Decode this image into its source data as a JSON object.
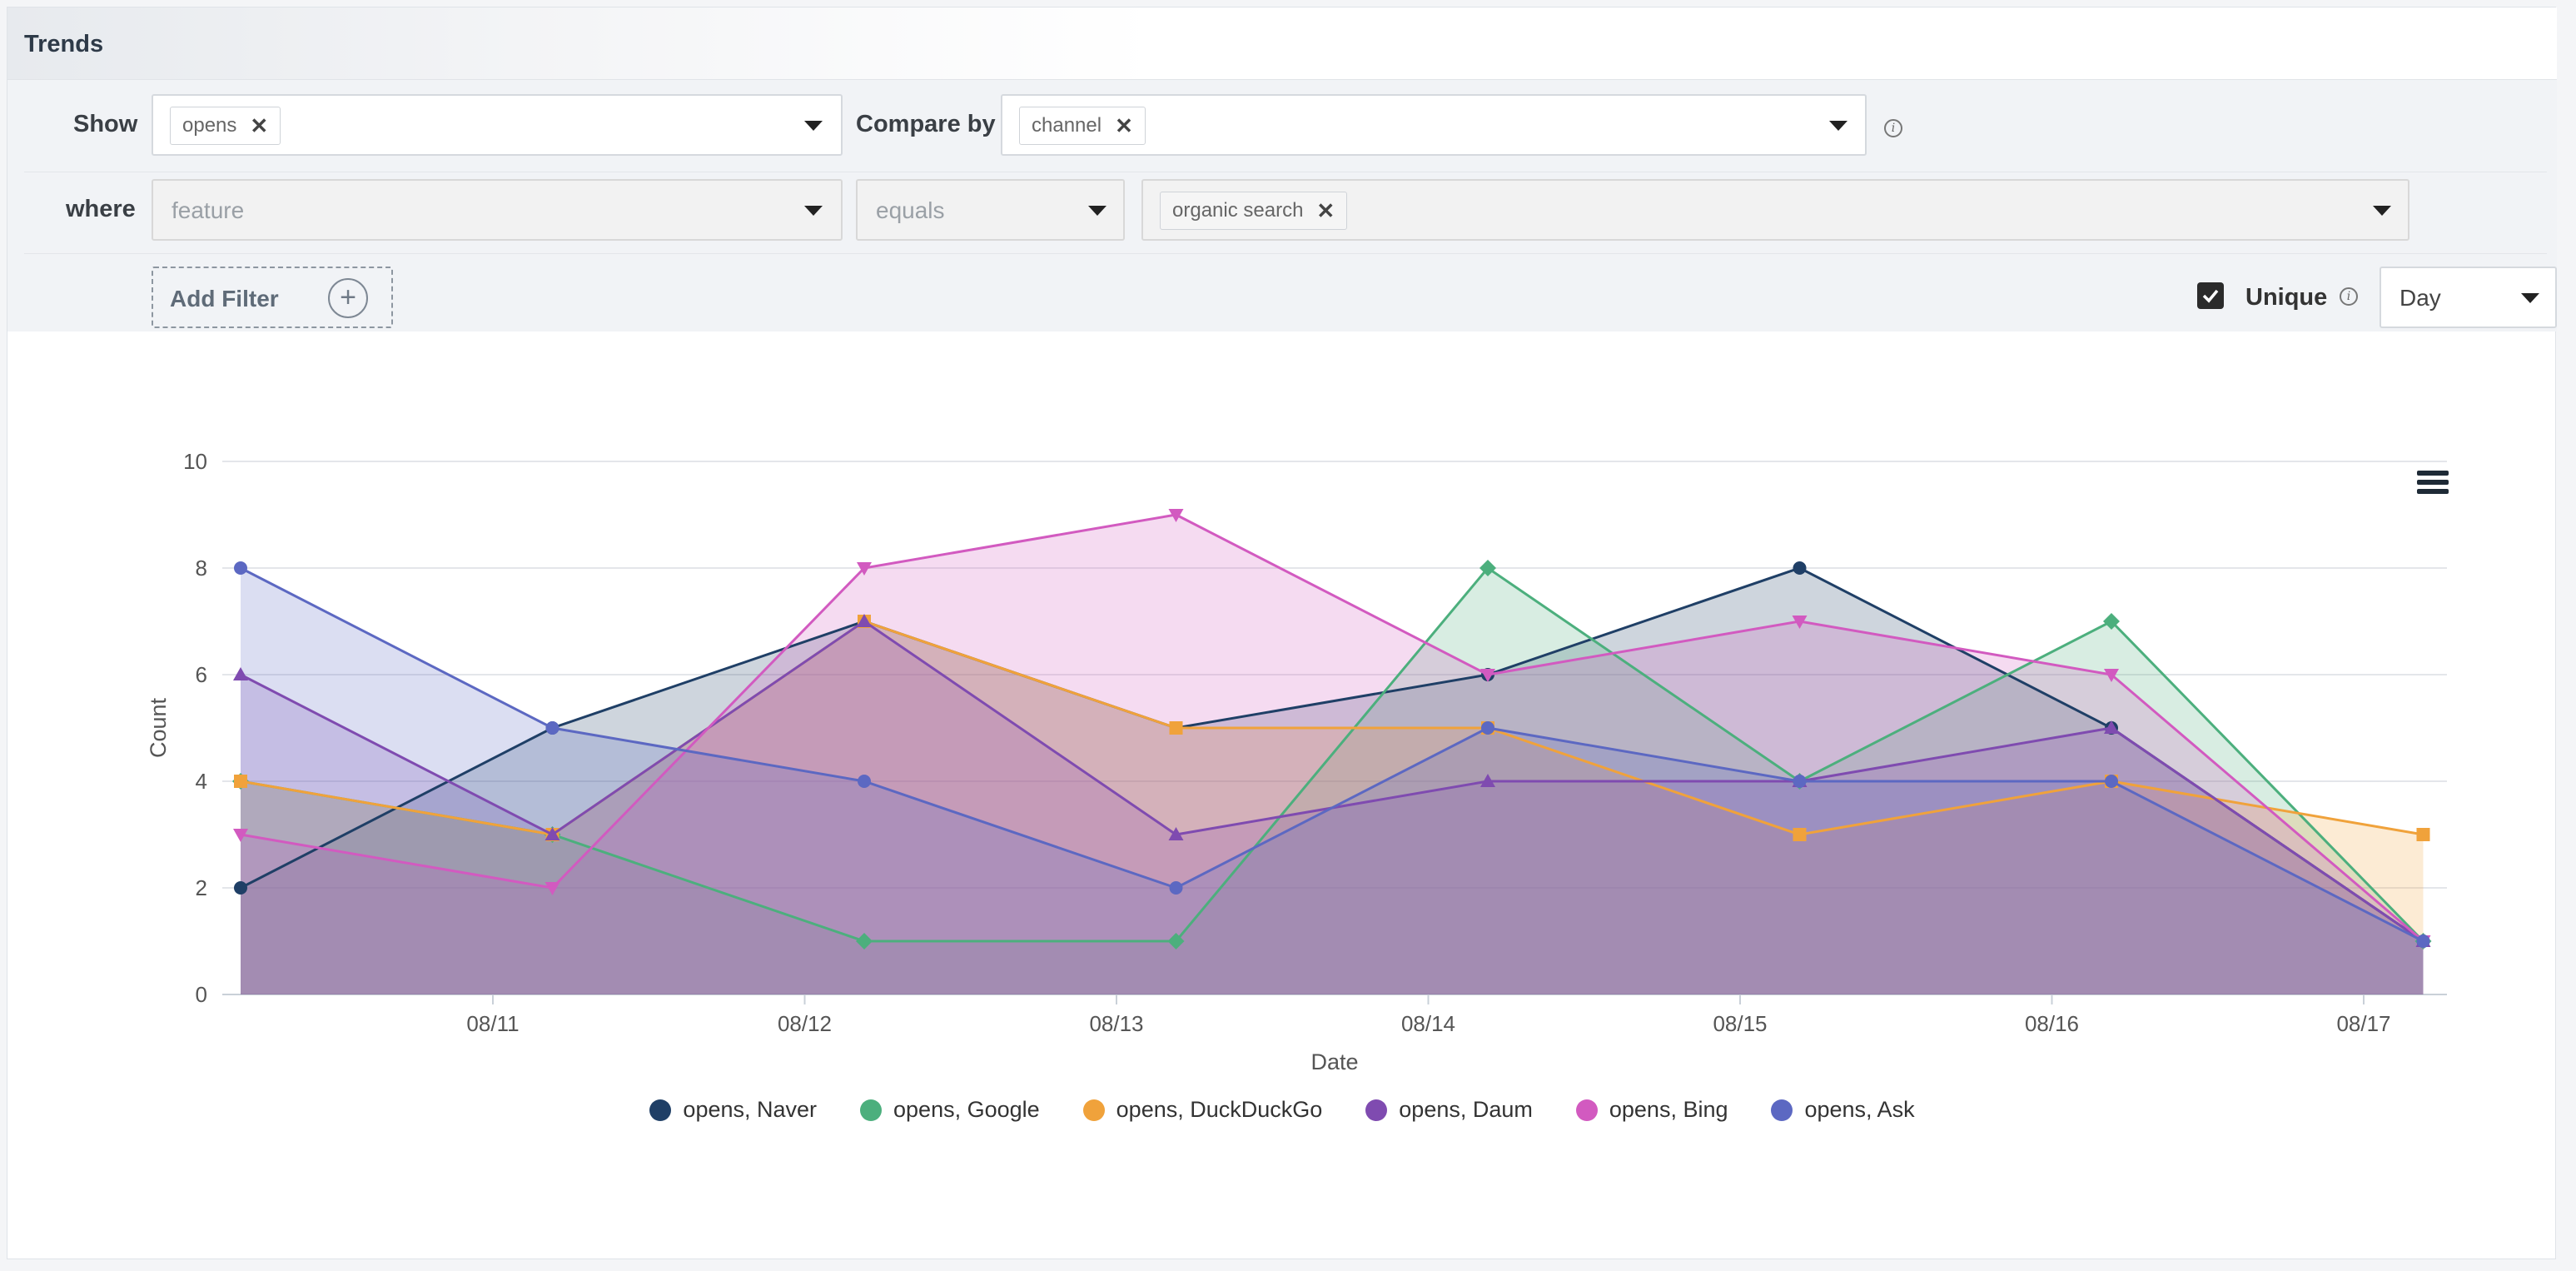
{
  "panel": {
    "title": "Trends"
  },
  "show": {
    "label": "Show",
    "tag": "opens"
  },
  "compare": {
    "label": "Compare by",
    "tag": "channel"
  },
  "where": {
    "label": "where",
    "field_placeholder": "feature",
    "operator_placeholder": "equals",
    "value_tag": "organic search"
  },
  "add_filter": {
    "label": "Add Filter"
  },
  "unique": {
    "label": "Unique",
    "checked": true
  },
  "interval": {
    "value": "Day"
  },
  "chart_data": {
    "type": "area",
    "xlabel": "Date",
    "ylabel": "Count",
    "ylim": [
      0,
      10
    ],
    "yticks": [
      0,
      2,
      4,
      6,
      8,
      10
    ],
    "x": [
      "2024-08-10",
      "2024-08-11",
      "2024-08-12",
      "2024-08-13",
      "2024-08-14",
      "2024-08-15",
      "2024-08-16",
      "2024-08-17"
    ],
    "xticks": [
      "08/11",
      "08/12",
      "08/13",
      "08/14",
      "08/15",
      "08/16",
      "08/17"
    ],
    "grid": true,
    "legend": "bottom",
    "series": [
      {
        "name": "opens, Naver",
        "color": "#1f3f66",
        "marker": "circle",
        "values": [
          2,
          5,
          7,
          5,
          6,
          8,
          5,
          1
        ]
      },
      {
        "name": "opens, Google",
        "color": "#4caf7d",
        "marker": "diamond",
        "values": [
          4,
          3,
          1,
          1,
          8,
          4,
          7,
          1
        ]
      },
      {
        "name": "opens, DuckDuckGo",
        "color": "#f0a23b",
        "marker": "square",
        "values": [
          4,
          3,
          7,
          5,
          5,
          3,
          4,
          3
        ]
      },
      {
        "name": "opens, Daum",
        "color": "#7f4bb0",
        "marker": "triangle",
        "values": [
          6,
          3,
          7,
          3,
          4,
          4,
          5,
          1
        ]
      },
      {
        "name": "opens, Bing",
        "color": "#d25ac0",
        "marker": "triangle-down",
        "values": [
          3,
          2,
          8,
          9,
          6,
          7,
          6,
          1
        ]
      },
      {
        "name": "opens, Ask",
        "color": "#5c68c2",
        "marker": "circle",
        "values": [
          8,
          5,
          4,
          2,
          5,
          4,
          4,
          1
        ]
      }
    ]
  }
}
